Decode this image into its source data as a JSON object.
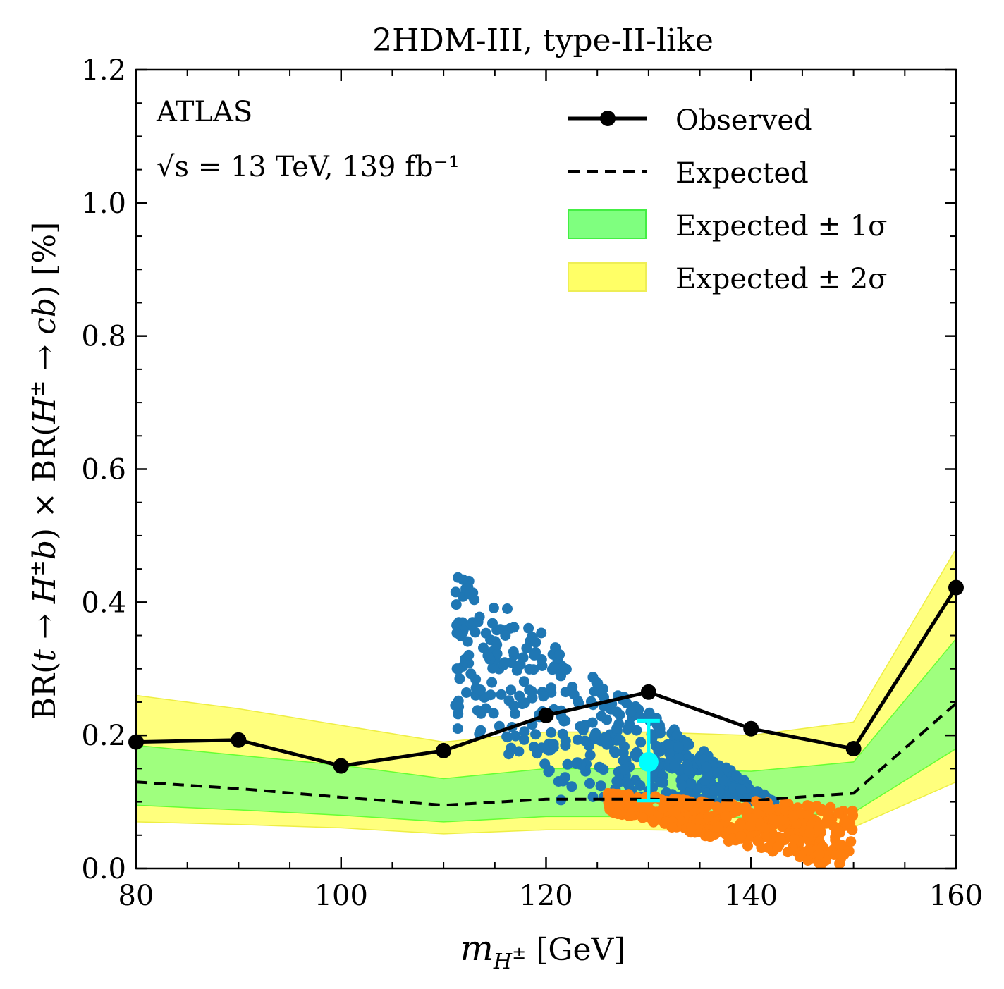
{
  "chart_data": {
    "type": "line",
    "title": "2HDM-III, type-II-like",
    "xlabel": "m_{H^±} [GeV]",
    "ylabel": "BR(t → H±b) × BR(H± → cb) [%]",
    "xlim": [
      80,
      160
    ],
    "ylim": [
      0.0,
      1.2
    ],
    "x_ticks": [
      "80",
      "100",
      "120",
      "140",
      "160"
    ],
    "y_ticks": [
      "0.0",
      "0.2",
      "0.4",
      "0.6",
      "0.8",
      "1.0",
      "1.2"
    ],
    "annotations": {
      "experiment": "ATLAS",
      "energy_lumi": "√s = 13 TeV, 139 fb⁻¹"
    },
    "legend": {
      "position": "top-right",
      "entries": [
        "Observed",
        "Expected",
        "Expected ± 1σ",
        "Expected ± 2σ"
      ]
    },
    "x": [
      80,
      90,
      100,
      110,
      120,
      130,
      140,
      150,
      160
    ],
    "series": [
      {
        "name": "Observed",
        "style": "solid-marker",
        "color": "#000000",
        "values": [
          0.19,
          0.193,
          0.154,
          0.177,
          0.23,
          0.265,
          0.21,
          0.18,
          0.422
        ]
      },
      {
        "name": "Expected",
        "style": "dashed",
        "color": "#000000",
        "values": [
          0.13,
          0.12,
          0.107,
          0.095,
          0.104,
          0.104,
          0.102,
          0.113,
          0.248
        ]
      }
    ],
    "bands": [
      {
        "name": "Expected ± 2σ",
        "color": "#ffff66",
        "lower": [
          0.07,
          0.066,
          0.061,
          0.052,
          0.058,
          0.058,
          0.056,
          0.062,
          0.13
        ],
        "upper": [
          0.26,
          0.24,
          0.215,
          0.19,
          0.205,
          0.205,
          0.2,
          0.22,
          0.48
        ]
      },
      {
        "name": "Expected ± 1σ",
        "color": "#7fff7f",
        "lower": [
          0.095,
          0.088,
          0.08,
          0.07,
          0.078,
          0.078,
          0.076,
          0.084,
          0.18
        ],
        "upper": [
          0.185,
          0.17,
          0.155,
          0.135,
          0.15,
          0.15,
          0.146,
          0.16,
          0.345
        ]
      }
    ],
    "reference_point": {
      "x": 130,
      "y": 0.16,
      "err_low": 0.058,
      "err_high": 0.062,
      "color": "#00ffff"
    },
    "scatter_sets": [
      {
        "color": "#1f77b4",
        "x_range": [
          111,
          145
        ],
        "description_region": "triangular region narrowing towards higher mass"
      },
      {
        "color": "#ff7f0e",
        "x_range": [
          126,
          150
        ],
        "description_region": "band below expected line"
      }
    ]
  }
}
